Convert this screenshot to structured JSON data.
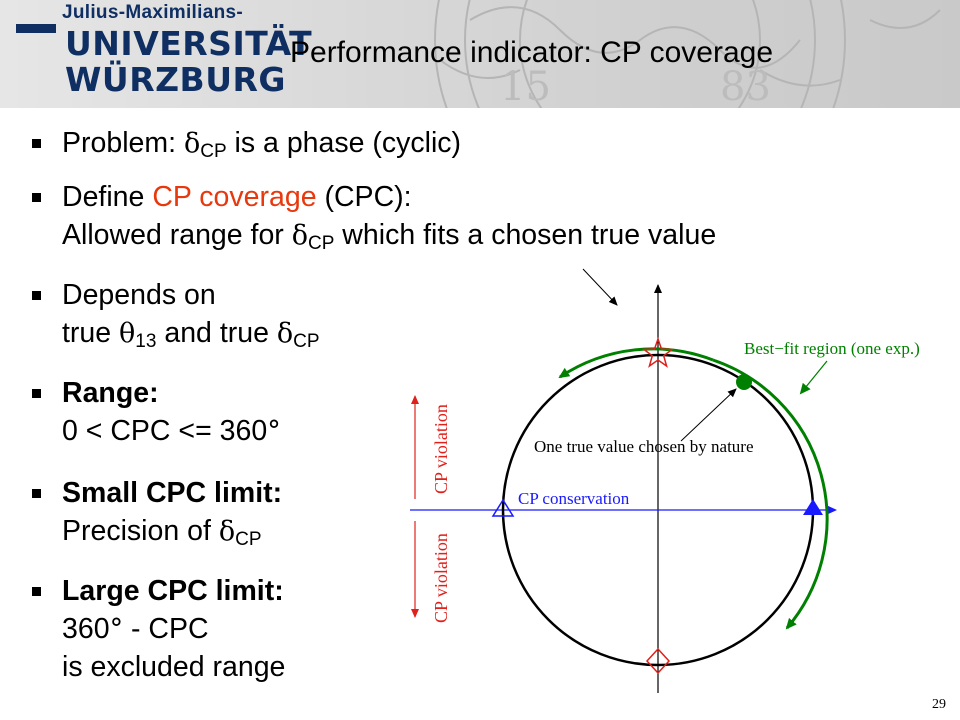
{
  "header": {
    "logo": {
      "line1": "Julius-Maximilians-",
      "line2": "UNIVERSITÄT",
      "line3": "WÜRZBURG"
    },
    "seal_digits_left": "15",
    "seal_digits_right": "83",
    "title": "Performance indicator: CP coverage"
  },
  "bullets": {
    "b1": {
      "pre": "Problem: ",
      "sym": "δ",
      "sub": "CP",
      "post": " is a phase (cyclic)"
    },
    "b2": {
      "pre": "Define ",
      "highlight": "CP coverage",
      "post": " (CPC):",
      "l2_pre": "Allowed range for ",
      "l2_sym": "δ",
      "l2_sub": "CP",
      "l2_post": " which fits a chosen true value"
    },
    "b3": {
      "l1": "Depends on",
      "l2_a": "true ",
      "l2_sym1": "θ",
      "l2_sub1": "13",
      "l2_b": " and true ",
      "l2_sym2": "δ",
      "l2_sub2": "CP"
    },
    "b4": {
      "l1": "Range:",
      "l2_pre": "0 < CPC <= 360",
      "l2_deg": "°"
    },
    "b5": {
      "l1": "Small CPC limit:",
      "l2_pre": "Precision of ",
      "l2_sym": "δ",
      "l2_sub": "CP"
    },
    "b6": {
      "l1": "Large CPC limit:",
      "l2_a": "360",
      "l2_deg": "°",
      "l2_b": " - CPC",
      "l3": "is excluded range"
    }
  },
  "diagram": {
    "label_bestfit": "Best−fit region (one exp.)",
    "label_truevalue": "One true value chosen by nature",
    "label_cpcons": "CP conservation",
    "label_cpviol_top": "CP violation",
    "label_cpviol_bottom": "CP violation",
    "colors": {
      "green": "#008000",
      "red": "#e0201b",
      "blue": "#1a1aff"
    }
  },
  "page_number": "29"
}
